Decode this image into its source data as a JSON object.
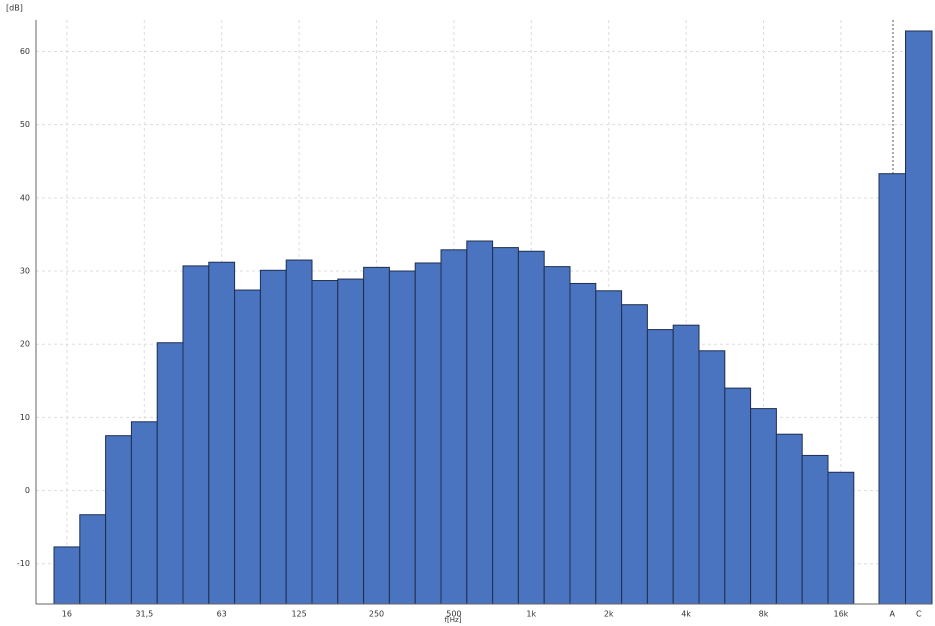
{
  "chart_data": {
    "type": "bar",
    "y_label": "[dB]",
    "x_label": "f[Hz]",
    "categories": [
      "16",
      null,
      null,
      "31,5",
      null,
      null,
      "63",
      null,
      null,
      "125",
      null,
      null,
      "250",
      null,
      null,
      "500",
      null,
      null,
      "1k",
      null,
      null,
      "2k",
      null,
      null,
      "4k",
      null,
      null,
      "8k",
      null,
      null,
      "16k",
      "A",
      "C"
    ],
    "values": [
      -7.7,
      -3.3,
      7.5,
      9.4,
      20.2,
      30.7,
      31.2,
      27.4,
      30.1,
      31.5,
      28.7,
      28.9,
      30.5,
      30.0,
      31.1,
      32.9,
      34.1,
      33.2,
      32.7,
      30.6,
      28.3,
      27.3,
      25.4,
      22.0,
      22.6,
      19.1,
      14.0,
      11.2,
      7.7,
      4.8,
      2.5,
      43.3,
      62.8
    ],
    "color": "#4a73c0",
    "ylim": [
      -15.5,
      64.3
    ],
    "yticks": [
      -10,
      0,
      10,
      20,
      30,
      40,
      50,
      60
    ],
    "grid": true
  }
}
